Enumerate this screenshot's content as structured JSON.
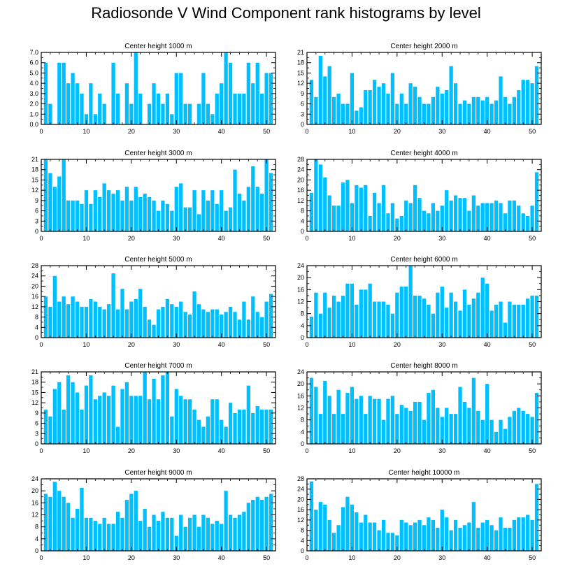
{
  "title": "Radiosonde V Wind Component rank histograms by level",
  "style": {
    "bar_color": "#00BFFF",
    "bar_edge": "#ffffff",
    "axis_color": "#000000"
  },
  "chart_data": [
    {
      "type": "bar",
      "title": "Center height 1000 m",
      "xlabel": "",
      "ylabel": "",
      "xlim": [
        0,
        52
      ],
      "ylim": [
        0,
        7
      ],
      "yticks": [
        0,
        1,
        2,
        3,
        4,
        5,
        6,
        7
      ],
      "ytick_labels": [
        "0.0",
        "1.0",
        "2.0",
        "3.0",
        "4.0",
        "5.0",
        "6.0",
        "7.0"
      ],
      "xticks": [
        0,
        10,
        20,
        30,
        40,
        50
      ],
      "x": [
        1,
        2,
        3,
        4,
        5,
        6,
        7,
        8,
        9,
        10,
        11,
        12,
        13,
        14,
        15,
        16,
        17,
        18,
        19,
        20,
        21,
        22,
        23,
        24,
        25,
        26,
        27,
        28,
        29,
        30,
        31,
        32,
        33,
        34,
        35,
        36,
        37,
        38,
        39,
        40,
        41,
        42,
        43,
        44,
        45,
        46,
        47,
        48,
        49,
        50,
        51
      ],
      "values": [
        6,
        2,
        0,
        6,
        6,
        4,
        5,
        4,
        3,
        1,
        4,
        1,
        3,
        2,
        0,
        6,
        3,
        0,
        4,
        2,
        7,
        3,
        0,
        2,
        4,
        3,
        2,
        3,
        1,
        5,
        5,
        2,
        2,
        0,
        2,
        5,
        2,
        1,
        3,
        4,
        7,
        6,
        3,
        3,
        3,
        6,
        4,
        6,
        3,
        5,
        5
      ]
    },
    {
      "type": "bar",
      "title": "Center height 2000 m",
      "xlabel": "",
      "ylabel": "",
      "xlim": [
        0,
        52
      ],
      "ylim": [
        0,
        21
      ],
      "yticks": [
        0,
        3,
        6,
        9,
        12,
        15,
        18,
        21
      ],
      "ytick_labels": [
        "0",
        "3",
        "6",
        "9",
        "12",
        "15",
        "18",
        "21"
      ],
      "xticks": [
        0,
        10,
        20,
        30,
        40,
        50
      ],
      "x": [
        1,
        2,
        3,
        4,
        5,
        6,
        7,
        8,
        9,
        10,
        11,
        12,
        13,
        14,
        15,
        16,
        17,
        18,
        19,
        20,
        21,
        22,
        23,
        24,
        25,
        26,
        27,
        28,
        29,
        30,
        31,
        32,
        33,
        34,
        35,
        36,
        37,
        38,
        39,
        40,
        41,
        42,
        43,
        44,
        45,
        46,
        47,
        48,
        49,
        50,
        51
      ],
      "values": [
        13,
        8,
        20,
        14,
        17,
        8,
        9,
        6,
        6,
        15,
        4,
        5,
        10,
        10,
        13,
        11,
        12,
        9,
        15,
        6,
        9,
        6,
        12,
        11,
        8,
        6,
        6,
        8,
        11,
        9,
        10,
        17,
        12,
        6,
        7,
        6,
        8,
        8,
        7,
        8,
        6,
        7,
        14,
        8,
        6,
        8,
        10,
        13,
        13,
        12,
        17
      ]
    },
    {
      "type": "bar",
      "title": "Center height 3000 m",
      "xlabel": "",
      "ylabel": "",
      "xlim": [
        0,
        52
      ],
      "ylim": [
        0,
        21
      ],
      "yticks": [
        0,
        3,
        6,
        9,
        12,
        15,
        18,
        21
      ],
      "ytick_labels": [
        "0",
        "3",
        "6",
        "9",
        "12",
        "15",
        "18",
        "21"
      ],
      "xticks": [
        0,
        10,
        20,
        30,
        40,
        50
      ],
      "x": [
        1,
        2,
        3,
        4,
        5,
        6,
        7,
        8,
        9,
        10,
        11,
        12,
        13,
        14,
        15,
        16,
        17,
        18,
        19,
        20,
        21,
        22,
        23,
        24,
        25,
        26,
        27,
        28,
        29,
        30,
        31,
        32,
        33,
        34,
        35,
        36,
        37,
        38,
        39,
        40,
        41,
        42,
        43,
        44,
        45,
        46,
        47,
        48,
        49,
        50,
        51
      ],
      "values": [
        21,
        17,
        13,
        16,
        21,
        9,
        9,
        9,
        8,
        12,
        8,
        12,
        10,
        14,
        12,
        11,
        12,
        9,
        13,
        9,
        13,
        10,
        11,
        10,
        9,
        6,
        9,
        8,
        6,
        13,
        14,
        7,
        7,
        12,
        5,
        12,
        9,
        12,
        8,
        12,
        6,
        7,
        18,
        11,
        9,
        13,
        19,
        13,
        11,
        21,
        17
      ]
    },
    {
      "type": "bar",
      "title": "Center height 4000 m",
      "xlabel": "",
      "ylabel": "",
      "xlim": [
        0,
        52
      ],
      "ylim": [
        0,
        28
      ],
      "yticks": [
        0,
        4,
        8,
        12,
        16,
        20,
        24,
        28
      ],
      "ytick_labels": [
        "0",
        "4",
        "8",
        "12",
        "16",
        "20",
        "24",
        "28"
      ],
      "xticks": [
        0,
        10,
        20,
        30,
        40,
        50
      ],
      "x": [
        1,
        2,
        3,
        4,
        5,
        6,
        7,
        8,
        9,
        10,
        11,
        12,
        13,
        14,
        15,
        16,
        17,
        18,
        19,
        20,
        21,
        22,
        23,
        24,
        25,
        26,
        27,
        28,
        29,
        30,
        31,
        32,
        33,
        34,
        35,
        36,
        37,
        38,
        39,
        40,
        41,
        42,
        43,
        44,
        45,
        46,
        47,
        48,
        49,
        50,
        51
      ],
      "values": [
        15,
        28,
        26,
        21,
        14,
        10,
        10,
        19,
        20,
        11,
        18,
        17,
        18,
        6,
        15,
        11,
        18,
        7,
        11,
        5,
        6,
        12,
        11,
        18,
        13,
        8,
        7,
        11,
        8,
        10,
        16,
        12,
        14,
        13,
        13,
        8,
        14,
        10,
        11,
        11,
        11,
        12,
        11,
        7,
        12,
        12,
        10,
        7,
        6,
        10,
        23
      ]
    },
    {
      "type": "bar",
      "title": "Center height 5000 m",
      "xlabel": "",
      "ylabel": "",
      "xlim": [
        0,
        52
      ],
      "ylim": [
        0,
        28
      ],
      "yticks": [
        0,
        4,
        8,
        12,
        16,
        20,
        24,
        28
      ],
      "ytick_labels": [
        "0",
        "4",
        "8",
        "12",
        "16",
        "20",
        "24",
        "28"
      ],
      "xticks": [
        0,
        10,
        20,
        30,
        40,
        50
      ],
      "x": [
        1,
        2,
        3,
        4,
        5,
        6,
        7,
        8,
        9,
        10,
        11,
        12,
        13,
        14,
        15,
        16,
        17,
        18,
        19,
        20,
        21,
        22,
        23,
        24,
        25,
        26,
        27,
        28,
        29,
        30,
        31,
        32,
        33,
        34,
        35,
        36,
        37,
        38,
        39,
        40,
        41,
        42,
        43,
        44,
        45,
        46,
        47,
        48,
        49,
        50,
        51
      ],
      "values": [
        16,
        12,
        24,
        14,
        16,
        13,
        16,
        14,
        12,
        12,
        15,
        14,
        12,
        11,
        13,
        25,
        11,
        19,
        11,
        14,
        15,
        19,
        12,
        7,
        5,
        11,
        12,
        15,
        13,
        12,
        14,
        10,
        9,
        18,
        13,
        11,
        10,
        11,
        11,
        9,
        10,
        12,
        10,
        7,
        14,
        7,
        16,
        10,
        8,
        14,
        17
      ]
    },
    {
      "type": "bar",
      "title": "Center height 6000 m",
      "xlabel": "",
      "ylabel": "",
      "xlim": [
        0,
        52
      ],
      "ylim": [
        0,
        24
      ],
      "yticks": [
        0,
        4,
        8,
        12,
        16,
        20,
        24
      ],
      "ytick_labels": [
        "0",
        "4",
        "8",
        "12",
        "16",
        "20",
        "24"
      ],
      "xticks": [
        0,
        10,
        20,
        30,
        40,
        50
      ],
      "x": [
        1,
        2,
        3,
        4,
        5,
        6,
        7,
        8,
        9,
        10,
        11,
        12,
        13,
        14,
        15,
        16,
        17,
        18,
        19,
        20,
        21,
        22,
        23,
        24,
        25,
        26,
        27,
        28,
        29,
        30,
        31,
        32,
        33,
        34,
        35,
        36,
        37,
        38,
        39,
        40,
        41,
        42,
        43,
        44,
        45,
        46,
        47,
        48,
        49,
        50,
        51
      ],
      "values": [
        7,
        15,
        8,
        15,
        10,
        14,
        12,
        14,
        18,
        18,
        11,
        16,
        16,
        18,
        12,
        12,
        12,
        11,
        8,
        15,
        17,
        17,
        24,
        14,
        14,
        13,
        11,
        8,
        15,
        17,
        10,
        15,
        12,
        9,
        16,
        11,
        13,
        15,
        20,
        18,
        9,
        11,
        12,
        5,
        12,
        11,
        11,
        11,
        13,
        14,
        14
      ]
    },
    {
      "type": "bar",
      "title": "Center height 7000 m",
      "xlabel": "",
      "ylabel": "",
      "xlim": [
        0,
        52
      ],
      "ylim": [
        0,
        21
      ],
      "yticks": [
        0,
        3,
        6,
        9,
        12,
        15,
        18,
        21
      ],
      "ytick_labels": [
        "0",
        "3",
        "6",
        "9",
        "12",
        "15",
        "18",
        "21"
      ],
      "xticks": [
        0,
        10,
        20,
        30,
        40,
        50
      ],
      "x": [
        1,
        2,
        3,
        4,
        5,
        6,
        7,
        8,
        9,
        10,
        11,
        12,
        13,
        14,
        15,
        16,
        17,
        18,
        19,
        20,
        21,
        22,
        23,
        24,
        25,
        26,
        27,
        28,
        29,
        30,
        31,
        32,
        33,
        34,
        35,
        36,
        37,
        38,
        39,
        40,
        41,
        42,
        43,
        44,
        45,
        46,
        47,
        48,
        49,
        50,
        51
      ],
      "values": [
        10,
        8,
        16,
        18,
        10,
        20,
        18,
        15,
        10,
        17,
        20,
        13,
        14,
        15,
        14,
        17,
        5,
        16,
        18,
        14,
        14,
        14,
        21,
        13,
        19,
        13,
        20,
        21,
        8,
        16,
        14,
        13,
        13,
        10,
        7,
        5,
        8,
        13,
        13,
        7,
        5,
        12,
        9,
        10,
        10,
        17,
        9,
        11,
        10,
        10,
        10
      ]
    },
    {
      "type": "bar",
      "title": "Center height 8000 m",
      "xlabel": "",
      "ylabel": "",
      "xlim": [
        0,
        52
      ],
      "ylim": [
        0,
        24
      ],
      "yticks": [
        0,
        4,
        8,
        12,
        16,
        20,
        24
      ],
      "ytick_labels": [
        "0",
        "4",
        "8",
        "12",
        "16",
        "20",
        "24"
      ],
      "xticks": [
        0,
        10,
        20,
        30,
        40,
        50
      ],
      "x": [
        1,
        2,
        3,
        4,
        5,
        6,
        7,
        8,
        9,
        10,
        11,
        12,
        13,
        14,
        15,
        16,
        17,
        18,
        19,
        20,
        21,
        22,
        23,
        24,
        25,
        26,
        27,
        28,
        29,
        30,
        31,
        32,
        33,
        34,
        35,
        36,
        37,
        38,
        39,
        40,
        41,
        42,
        43,
        44,
        45,
        46,
        47,
        48,
        49,
        50,
        51
      ],
      "values": [
        22,
        19,
        10,
        21,
        16,
        10,
        18,
        10,
        17,
        19,
        15,
        16,
        10,
        16,
        15,
        15,
        8,
        15,
        16,
        10,
        13,
        12,
        11,
        14,
        14,
        8,
        17,
        18,
        12,
        9,
        12,
        10,
        10,
        19,
        14,
        12,
        22,
        11,
        8,
        20,
        8,
        4,
        8,
        5,
        9,
        11,
        12,
        11,
        10,
        9,
        17
      ]
    },
    {
      "type": "bar",
      "title": "Center height 9000 m",
      "xlabel": "",
      "ylabel": "",
      "xlim": [
        0,
        52
      ],
      "ylim": [
        0,
        24
      ],
      "yticks": [
        0,
        4,
        8,
        12,
        16,
        20,
        24
      ],
      "ytick_labels": [
        "0",
        "4",
        "8",
        "12",
        "16",
        "20",
        "24"
      ],
      "xticks": [
        0,
        10,
        20,
        30,
        40,
        50
      ],
      "x": [
        1,
        2,
        3,
        4,
        5,
        6,
        7,
        8,
        9,
        10,
        11,
        12,
        13,
        14,
        15,
        16,
        17,
        18,
        19,
        20,
        21,
        22,
        23,
        24,
        25,
        26,
        27,
        28,
        29,
        30,
        31,
        32,
        33,
        34,
        35,
        36,
        37,
        38,
        39,
        40,
        41,
        42,
        43,
        44,
        45,
        46,
        47,
        48,
        49,
        50,
        51
      ],
      "values": [
        19,
        18,
        23,
        20,
        18,
        16,
        11,
        14,
        21,
        11,
        11,
        10,
        9,
        11,
        9,
        9,
        13,
        11,
        17,
        19,
        20,
        10,
        14,
        8,
        12,
        10,
        13,
        11,
        11,
        5,
        12,
        8,
        11,
        12,
        8,
        12,
        11,
        9,
        10,
        9,
        20,
        12,
        11,
        12,
        13,
        16,
        17,
        18,
        17,
        18,
        19
      ]
    },
    {
      "type": "bar",
      "title": "Center height 10000 m",
      "xlabel": "",
      "ylabel": "",
      "xlim": [
        0,
        52
      ],
      "ylim": [
        0,
        28
      ],
      "yticks": [
        0,
        4,
        8,
        12,
        16,
        20,
        24,
        28
      ],
      "ytick_labels": [
        "0",
        "4",
        "8",
        "12",
        "16",
        "20",
        "24",
        "28"
      ],
      "xticks": [
        0,
        10,
        20,
        30,
        40,
        50
      ],
      "x": [
        1,
        2,
        3,
        4,
        5,
        6,
        7,
        8,
        9,
        10,
        11,
        12,
        13,
        14,
        15,
        16,
        17,
        18,
        19,
        20,
        21,
        22,
        23,
        24,
        25,
        26,
        27,
        28,
        29,
        30,
        31,
        32,
        33,
        34,
        35,
        36,
        37,
        38,
        39,
        40,
        41,
        42,
        43,
        44,
        45,
        46,
        47,
        48,
        49,
        50,
        51
      ],
      "values": [
        27,
        16,
        19,
        18,
        12,
        7,
        10,
        17,
        21,
        18,
        15,
        11,
        14,
        11,
        11,
        8,
        12,
        7,
        7,
        6,
        12,
        11,
        10,
        11,
        12,
        10,
        13,
        12,
        9,
        16,
        13,
        8,
        12,
        9,
        10,
        11,
        19,
        9,
        11,
        12,
        10,
        8,
        13,
        9,
        9,
        12,
        13,
        13,
        14,
        12,
        26
      ]
    }
  ]
}
